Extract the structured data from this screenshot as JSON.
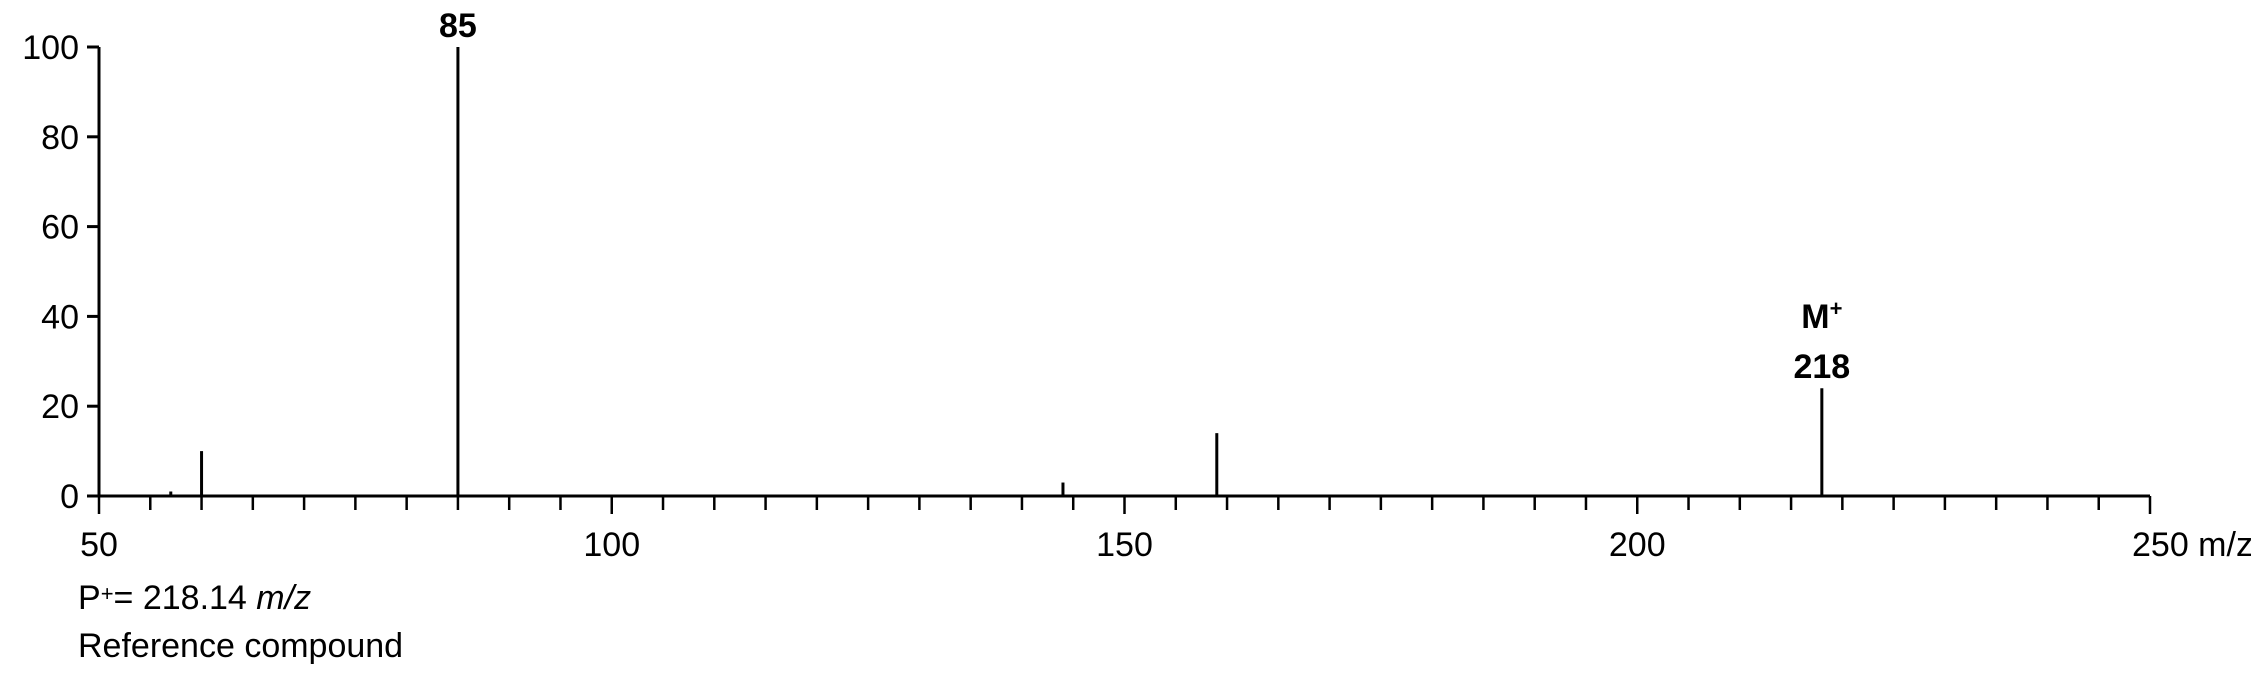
{
  "chart_data": {
    "type": "bar",
    "title": "",
    "xlabel": "m/z",
    "ylabel": "",
    "xlim": [
      50,
      250
    ],
    "ylim": [
      0,
      100
    ],
    "x_ticks": [
      50,
      100,
      150,
      200,
      250
    ],
    "x_tick_labels": [
      "50",
      "100",
      "150",
      "200",
      "250 m/z"
    ],
    "x_minor_step": 5,
    "y_ticks": [
      0,
      20,
      40,
      60,
      80,
      100
    ],
    "y_tick_labels": [
      "0",
      "20",
      "40",
      "60",
      "80",
      "100"
    ],
    "peaks": [
      {
        "x": 57,
        "y": 1
      },
      {
        "x": 60,
        "y": 10
      },
      {
        "x": 85,
        "y": 100,
        "label": [
          "85"
        ]
      },
      {
        "x": 144,
        "y": 3
      },
      {
        "x": 159,
        "y": 14
      },
      {
        "x": 218,
        "y": 24,
        "label": [
          "M+",
          "218"
        ]
      }
    ]
  },
  "notes": {
    "line1_prefix": "P",
    "line1_sup": "+",
    "line1_value": "= 218.14 ",
    "line1_unit": "m/z",
    "line2": "Reference compound"
  }
}
